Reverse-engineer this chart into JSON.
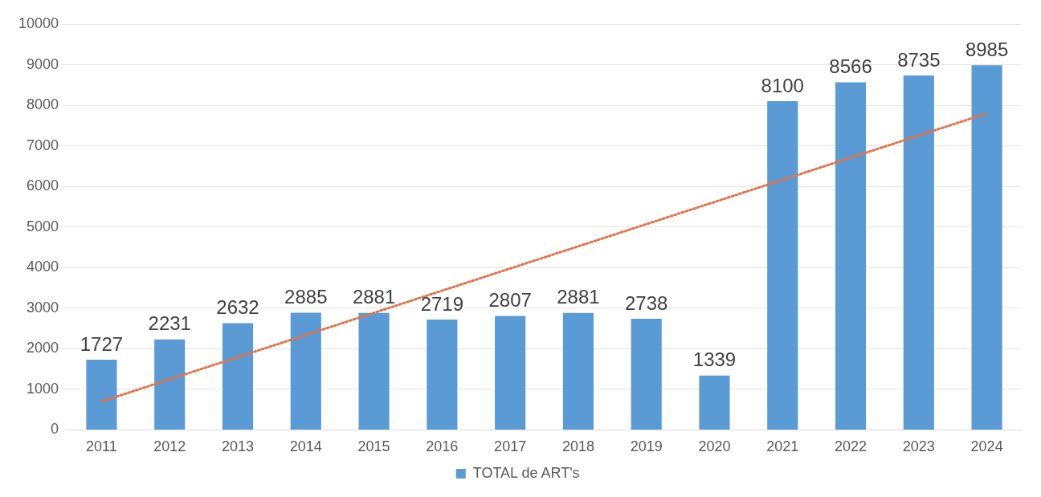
{
  "chart_data": {
    "type": "bar",
    "categories": [
      "2011",
      "2012",
      "2013",
      "2014",
      "2015",
      "2016",
      "2017",
      "2018",
      "2019",
      "2020",
      "2021",
      "2022",
      "2023",
      "2024"
    ],
    "series": [
      {
        "name": "TOTAL de ART's",
        "color": "#5b9bd5",
        "values": [
          1727,
          2231,
          2632,
          2885,
          2881,
          2719,
          2807,
          2881,
          2738,
          1339,
          8100,
          8566,
          8735,
          8985
        ],
        "value_labels": [
          "1727",
          "2231",
          "2632",
          "2885",
          "2881",
          "2719",
          "2807",
          "2881",
          "2738",
          "1339",
          "8100",
          "8566",
          "8735",
          "8985"
        ]
      },
      {
        "type": "line",
        "color": "#e0744a",
        "line_style": "dotted",
        "marker": "none",
        "values": [
          700,
          null,
          null,
          null,
          null,
          null,
          null,
          null,
          null,
          null,
          null,
          null,
          null,
          7800
        ]
      }
    ],
    "ylim": [
      0,
      10000
    ],
    "yticks": [
      0,
      1000,
      2000,
      3000,
      4000,
      5000,
      6000,
      7000,
      8000,
      9000,
      10000
    ],
    "grid": "y",
    "legend": "bottom"
  }
}
